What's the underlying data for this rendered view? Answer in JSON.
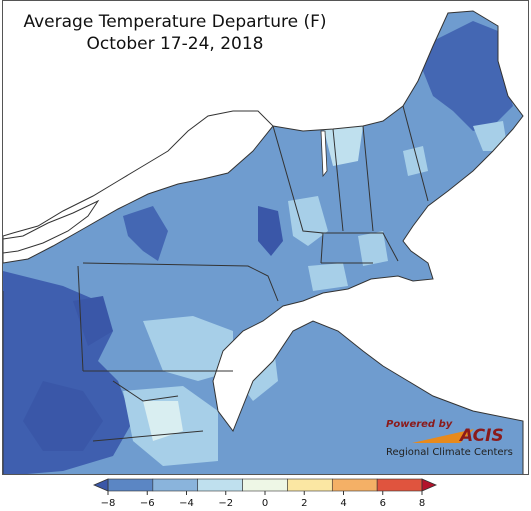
{
  "title": {
    "line1": "Average Temperature Departure (F)",
    "line2": "October 17-24, 2018"
  },
  "logo": {
    "powered_by": "Powered by",
    "brand": "ACIS",
    "subtitle": "Regional Climate Centers"
  },
  "legend": {
    "ticks": [
      "−8",
      "−6",
      "−4",
      "−2",
      "0",
      "2",
      "4",
      "6",
      "8"
    ],
    "colors": [
      "#3a57a8",
      "#5b86c4",
      "#8ab4dc",
      "#bfe0ee",
      "#eef7e6",
      "#fbe7a3",
      "#f4b066",
      "#e0543e",
      "#b3122b"
    ]
  },
  "palette": {
    "lake": "#ffffff",
    "ocean": "#ffffff",
    "border": "#333333"
  }
}
